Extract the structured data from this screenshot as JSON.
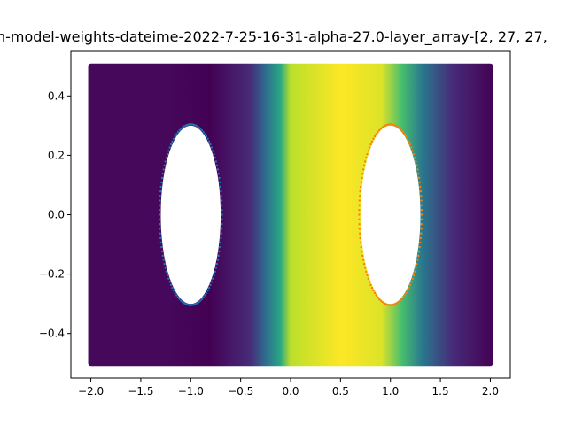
{
  "chart_data": {
    "type": "heatmap",
    "title": "n-model-weights-dateime-2022-7-25-16-31-alpha-27.0-layer_array-[2, 27, 27,",
    "xlabel": "",
    "ylabel": "",
    "xlim": [
      -2.2,
      2.2
    ],
    "ylim": [
      -0.55,
      0.55
    ],
    "x_ticks": [
      "−2.0",
      "−1.5",
      "−1.0",
      "−0.5",
      "0.0",
      "0.5",
      "1.0",
      "1.5",
      "2.0"
    ],
    "x_tick_values": [
      -2.0,
      -1.5,
      -1.0,
      -0.5,
      0.0,
      0.5,
      1.0,
      1.5,
      2.0
    ],
    "y_ticks": [
      "−0.4",
      "−0.2",
      "0.0",
      "0.2",
      "0.4"
    ],
    "y_tick_values": [
      -0.4,
      -0.2,
      0.0,
      0.2,
      0.4
    ],
    "domain": {
      "x": [
        -2.0,
        2.0
      ],
      "y": [
        -0.5,
        0.5
      ]
    },
    "colormap": "viridis",
    "value_profile_x": [
      -2.0,
      -1.2,
      -0.8,
      -0.4,
      -0.25,
      -0.1,
      0.0,
      0.5,
      0.9,
      1.1,
      1.3,
      1.6,
      2.0
    ],
    "value_profile": [
      0.02,
      0.02,
      0.0,
      0.12,
      0.35,
      0.6,
      0.9,
      1.0,
      0.95,
      0.7,
      0.4,
      0.12,
      0.0
    ],
    "holes": [
      {
        "cx": -1.0,
        "cy": 0.0,
        "rx": 0.3,
        "ry": 0.3,
        "boundary_color": "#1f77b4"
      },
      {
        "cx": 1.0,
        "cy": 0.0,
        "rx": 0.3,
        "ry": 0.3,
        "boundary_color": "#ff7f0e"
      }
    ]
  }
}
